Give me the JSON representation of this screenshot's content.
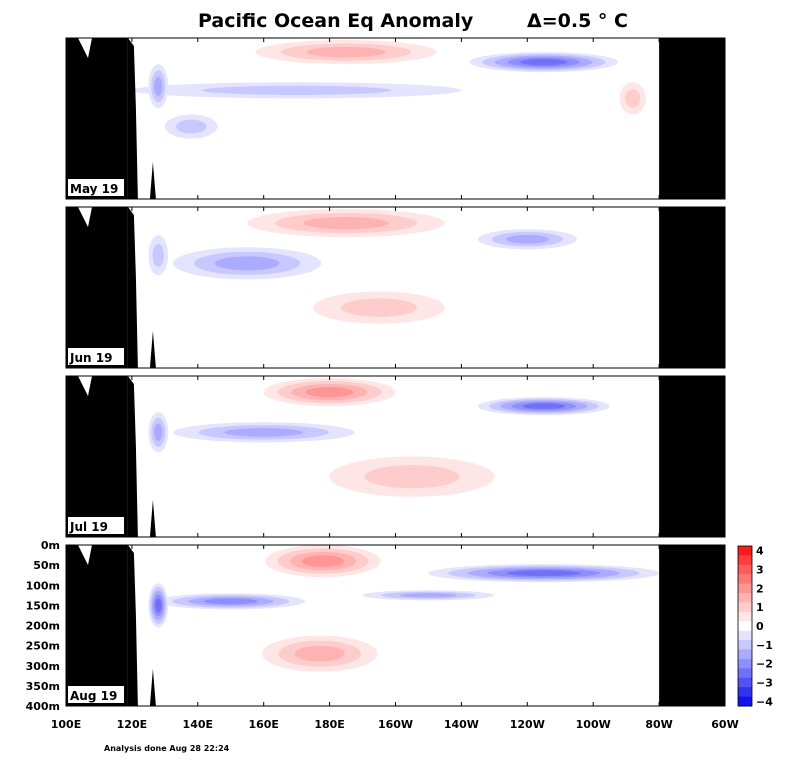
{
  "title": "Pacific Ocean Eq Anomaly",
  "contour_interval": "Δ=0.5 ° C",
  "footer": "Analysis done Aug 28 22:24",
  "chart_data": {
    "type": "heatmap",
    "title": "Pacific Ocean Eq Anomaly",
    "subtitle": "Δ=0.5 ° C",
    "x_ticks": [
      "100E",
      "120E",
      "140E",
      "160E",
      "180E",
      "160W",
      "140W",
      "120W",
      "100W",
      "80W",
      "60W"
    ],
    "x_tick_deg_east": [
      100,
      120,
      140,
      160,
      180,
      200,
      220,
      240,
      260,
      280,
      300
    ],
    "xlim": [
      100,
      300
    ],
    "y_ticks": [
      "0m",
      "50m",
      "100m",
      "150m",
      "200m",
      "250m",
      "300m",
      "350m",
      "400m"
    ],
    "y_tick_depth_m": [
      0,
      50,
      100,
      150,
      200,
      250,
      300,
      350,
      400
    ],
    "ylim": [
      0,
      400
    ],
    "y_inverted": true,
    "land_mask": {
      "west_coast_deg_east": 120,
      "east_coast_deg_east": 280
    },
    "colorbar": {
      "labels": [
        "4",
        "3",
        "2",
        "1",
        "0",
        "−1",
        "−2",
        "−3",
        "−4"
      ],
      "levels": [
        4,
        3.5,
        3,
        2.5,
        2,
        1.5,
        1,
        0.5,
        0,
        -0.5,
        -1,
        -1.5,
        -2,
        -2.5,
        -3,
        -3.5,
        -4
      ],
      "colors": [
        "#ff1a1a",
        "#ff3d3d",
        "#ff5c5c",
        "#ff7878",
        "#ff9696",
        "#ffb2b2",
        "#ffcccc",
        "#ffe6e6",
        "#ffffff",
        "#e4e4ff",
        "#c8c8ff",
        "#ababff",
        "#8e8efd",
        "#7171f8",
        "#5252f3",
        "#3333ee",
        "#1414ea"
      ]
    },
    "panels": [
      {
        "label": "May 19",
        "anomalies": [
          {
            "type": "warm",
            "lon": 185,
            "depth": 35,
            "width_deg": 55,
            "depth_range_m": 60,
            "peak": 1.5
          },
          {
            "type": "warm",
            "lon": 272,
            "depth": 150,
            "width_deg": 8,
            "depth_range_m": 80,
            "peak": 1.0
          },
          {
            "type": "cold",
            "lon": 245,
            "depth": 60,
            "width_deg": 45,
            "depth_range_m": 50,
            "peak": -2.5
          },
          {
            "type": "cold",
            "lon": 170,
            "depth": 130,
            "width_deg": 100,
            "depth_range_m": 40,
            "peak": -1.0
          },
          {
            "type": "cold",
            "lon": 128,
            "depth": 120,
            "width_deg": 6,
            "depth_range_m": 110,
            "peak": -1.5
          },
          {
            "type": "cold",
            "lon": 138,
            "depth": 220,
            "width_deg": 16,
            "depth_range_m": 60,
            "peak": -1.0
          }
        ]
      },
      {
        "label": "Jun 19",
        "anomalies": [
          {
            "type": "warm",
            "lon": 185,
            "depth": 40,
            "width_deg": 60,
            "depth_range_m": 70,
            "peak": 1.5
          },
          {
            "type": "warm",
            "lon": 195,
            "depth": 250,
            "width_deg": 40,
            "depth_range_m": 80,
            "peak": 1.0
          },
          {
            "type": "cold",
            "lon": 240,
            "depth": 80,
            "width_deg": 30,
            "depth_range_m": 50,
            "peak": -1.5
          },
          {
            "type": "cold",
            "lon": 155,
            "depth": 140,
            "width_deg": 45,
            "depth_range_m": 80,
            "peak": -1.5
          },
          {
            "type": "cold",
            "lon": 128,
            "depth": 120,
            "width_deg": 6,
            "depth_range_m": 100,
            "peak": -1.0
          }
        ]
      },
      {
        "label": "Jul 19",
        "anomalies": [
          {
            "type": "warm",
            "lon": 180,
            "depth": 40,
            "width_deg": 40,
            "depth_range_m": 70,
            "peak": 2.0
          },
          {
            "type": "warm",
            "lon": 205,
            "depth": 250,
            "width_deg": 50,
            "depth_range_m": 100,
            "peak": 1.0
          },
          {
            "type": "cold",
            "lon": 245,
            "depth": 75,
            "width_deg": 40,
            "depth_range_m": 45,
            "peak": -2.5
          },
          {
            "type": "cold",
            "lon": 160,
            "depth": 140,
            "width_deg": 55,
            "depth_range_m": 50,
            "peak": -1.5
          },
          {
            "type": "cold",
            "lon": 128,
            "depth": 140,
            "width_deg": 6,
            "depth_range_m": 100,
            "peak": -1.5
          }
        ]
      },
      {
        "label": "Aug 19",
        "anomalies": [
          {
            "type": "warm",
            "lon": 178,
            "depth": 40,
            "width_deg": 35,
            "depth_range_m": 80,
            "peak": 2.0
          },
          {
            "type": "warm",
            "lon": 177,
            "depth": 270,
            "width_deg": 35,
            "depth_range_m": 90,
            "peak": 1.5
          },
          {
            "type": "cold",
            "lon": 245,
            "depth": 70,
            "width_deg": 70,
            "depth_range_m": 45,
            "peak": -2.5
          },
          {
            "type": "cold",
            "lon": 150,
            "depth": 140,
            "width_deg": 45,
            "depth_range_m": 40,
            "peak": -2.0
          },
          {
            "type": "cold",
            "lon": 128,
            "depth": 150,
            "width_deg": 6,
            "depth_range_m": 110,
            "peak": -2.5
          },
          {
            "type": "cold",
            "lon": 210,
            "depth": 125,
            "width_deg": 40,
            "depth_range_m": 25,
            "peak": -1.5
          }
        ]
      }
    ]
  }
}
